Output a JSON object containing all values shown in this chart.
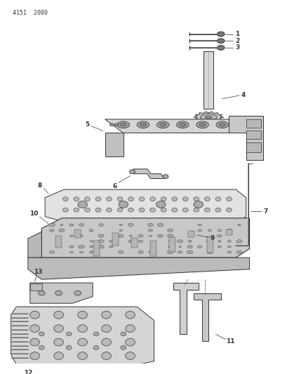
{
  "title": "4151  2000",
  "bg_color": "#ffffff",
  "lc": "#333333",
  "figsize": [
    4.1,
    5.33
  ],
  "dpi": 100,
  "label_fs": 6.5,
  "header_fs": 6
}
